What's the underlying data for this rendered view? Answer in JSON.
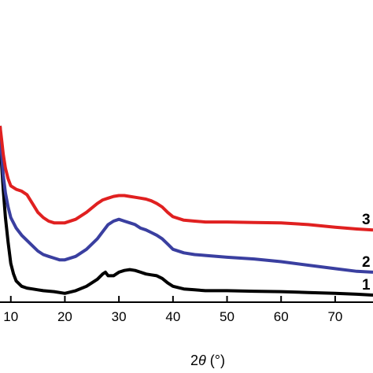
{
  "chart_data": {
    "type": "line",
    "title": "",
    "xlabel": "2θ (°)",
    "xlabel_parts": {
      "prefix": "2",
      "symbol": "θ",
      "suffix": " (°)"
    },
    "ylabel": "",
    "xlim": [
      8,
      77
    ],
    "ylim": [
      0,
      100
    ],
    "x_ticks": [
      10,
      20,
      30,
      40,
      50,
      60,
      70
    ],
    "y_ticks_shown": false,
    "grid": false,
    "series": [
      {
        "name": "1",
        "color": "#000000",
        "x": [
          8,
          8.3,
          8.6,
          9,
          9.5,
          10,
          10.5,
          11,
          12,
          13,
          14,
          15,
          16,
          18,
          20,
          22,
          24,
          26,
          27,
          27.5,
          28,
          29,
          30,
          31,
          32,
          33,
          34,
          35,
          36,
          37,
          38,
          39,
          40,
          42,
          44,
          46,
          48,
          50,
          55,
          60,
          65,
          70,
          74,
          77
        ],
        "y": [
          100,
          78,
          64,
          48,
          34,
          22,
          16,
          12,
          9,
          8,
          7.5,
          7,
          6.5,
          6,
          5,
          6.5,
          9,
          13,
          16,
          17,
          15,
          15,
          17,
          18,
          18.5,
          18,
          17,
          16,
          15.5,
          15,
          13.5,
          11,
          9,
          7.5,
          7,
          6.5,
          6.5,
          6.5,
          6.2,
          6,
          5.5,
          5,
          4.5,
          4
        ]
      },
      {
        "name": "2",
        "color": "#3a3fa0",
        "x": [
          8,
          8.3,
          8.6,
          9,
          9.5,
          10,
          11,
          12,
          13,
          14,
          15,
          16,
          17,
          18,
          19,
          20,
          22,
          24,
          26,
          27,
          28,
          29,
          30,
          31,
          32,
          33,
          34,
          35,
          36,
          37,
          38,
          39,
          40,
          42,
          44,
          46,
          48,
          50,
          55,
          60,
          65,
          70,
          74,
          77
        ],
        "y": [
          100,
          84,
          72,
          62,
          54,
          48,
          42,
          38,
          35,
          32,
          29,
          27,
          26,
          25,
          24,
          24,
          26,
          30,
          36,
          40,
          44,
          46,
          47,
          46,
          45,
          44,
          42,
          41,
          39.5,
          38,
          36,
          33,
          30,
          28,
          27,
          26.5,
          26,
          25.5,
          24.5,
          23,
          21,
          19,
          17.5,
          17
        ]
      },
      {
        "name": "3",
        "color": "#e02020",
        "x": [
          8,
          8.3,
          8.6,
          9,
          9.5,
          10,
          11,
          12,
          13,
          14,
          15,
          16,
          17,
          18,
          19,
          20,
          22,
          24,
          26,
          27,
          28,
          29,
          30,
          31,
          32,
          33,
          34,
          35,
          36,
          37,
          38,
          39,
          40,
          42,
          44,
          46,
          48,
          50,
          55,
          60,
          65,
          70,
          74,
          77
        ],
        "y": [
          100,
          92,
          84,
          76,
          70,
          66,
          64,
          63,
          61,
          56,
          51,
          48,
          46,
          45,
          45,
          45,
          47,
          51,
          56,
          58,
          59,
          60,
          60.5,
          60.5,
          60,
          59.5,
          59,
          58.5,
          57.5,
          56,
          54,
          51,
          48.5,
          46.5,
          46,
          45.5,
          45.5,
          45.5,
          45.2,
          45,
          44,
          42.5,
          41.5,
          41
        ]
      }
    ]
  }
}
